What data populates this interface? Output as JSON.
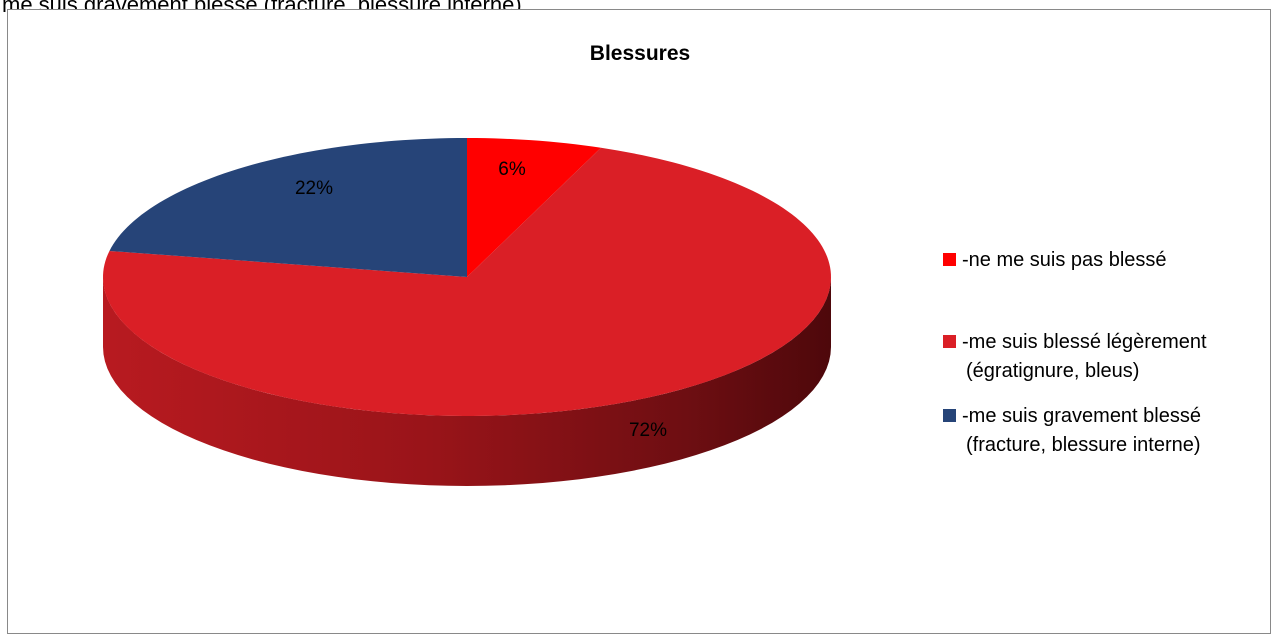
{
  "header": {
    "cut_text": "me suis gravement blessé (fracture, blessure interne)"
  },
  "chart_data": {
    "type": "pie",
    "title": "Blessures",
    "categories": [
      "-ne me suis pas blessé",
      "-me suis blessé légèrement (égratignure, bleus)",
      "-me suis gravement blessé (fracture, blessure interne)"
    ],
    "values": [
      6,
      72,
      22
    ],
    "data_labels": [
      "6%",
      "72%",
      "22%"
    ],
    "colors": [
      "#FF0000",
      "#DA1F26",
      "#264478"
    ],
    "style": "3d",
    "legend_position": "right",
    "legend": [
      {
        "lines": [
          "-ne me suis pas blessé"
        ]
      },
      {
        "lines": [
          "-me suis blessé légèrement",
          "(égratignure, bleus)"
        ]
      },
      {
        "lines": [
          "-me suis gravement blessé",
          "(fracture, blessure interne)"
        ]
      }
    ]
  }
}
